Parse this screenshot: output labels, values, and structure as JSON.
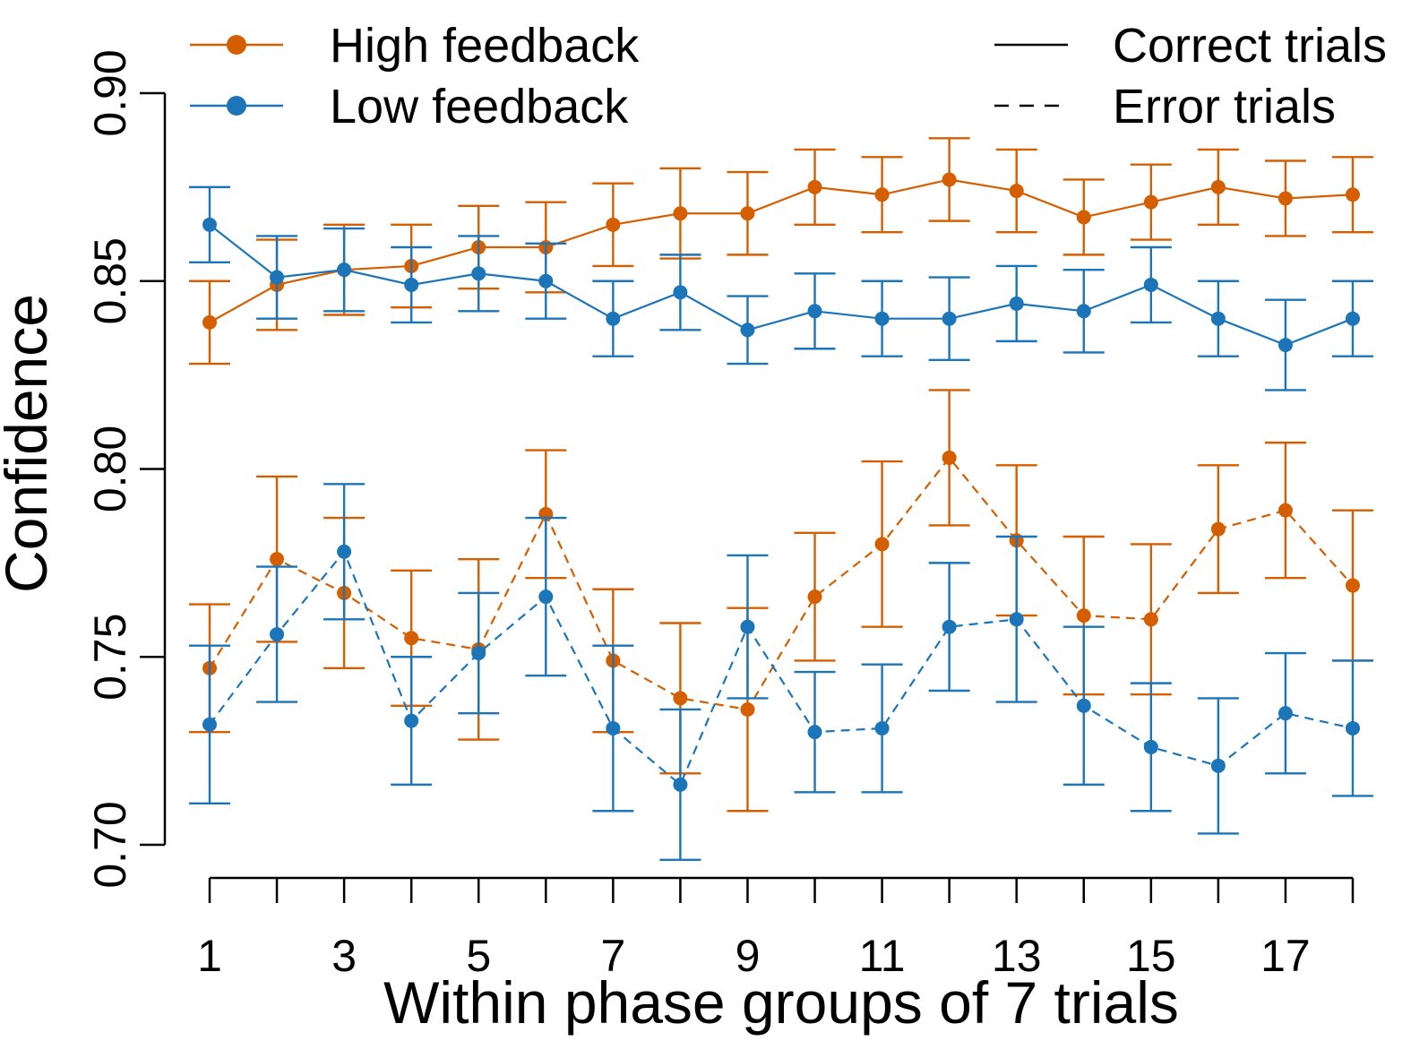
{
  "chart_data": {
    "type": "line",
    "xlabel": "Within phase groups of 7 trials",
    "ylabel": "Confidence",
    "xlim": [
      1,
      18
    ],
    "ylim": [
      0.7,
      0.9
    ],
    "x": [
      1,
      2,
      3,
      4,
      5,
      6,
      7,
      8,
      9,
      10,
      11,
      12,
      13,
      14,
      15,
      16,
      17,
      18
    ],
    "x_tick_values": [
      1,
      2,
      3,
      4,
      5,
      6,
      7,
      8,
      9,
      10,
      11,
      12,
      13,
      14,
      15,
      16,
      17,
      18
    ],
    "x_tick_labels": [
      "1",
      "3",
      "5",
      "7",
      "9",
      "11",
      "13",
      "15",
      "17"
    ],
    "x_tick_label_values": [
      1,
      3,
      5,
      7,
      9,
      11,
      13,
      15,
      17
    ],
    "y_ticks": [
      0.7,
      0.75,
      0.8,
      0.85,
      0.9
    ],
    "y_tick_labels": [
      "0.70",
      "0.75",
      "0.80",
      "0.85",
      "0.90"
    ],
    "grid": false,
    "legend": {
      "placement": "top",
      "groups": [
        {
          "label": "High feedback",
          "kind": "color",
          "color": "#D55E00"
        },
        {
          "label": "Low feedback",
          "kind": "color",
          "color": "#1B75B8"
        },
        {
          "label": "Correct trials",
          "kind": "linestyle",
          "dash": "solid"
        },
        {
          "label": "Error trials",
          "kind": "linestyle",
          "dash": "dashed"
        }
      ]
    },
    "series": [
      {
        "name": "High feedback",
        "condition": "Correct trials",
        "color": "#D55E00",
        "dash": "solid",
        "values": [
          0.839,
          0.849,
          0.853,
          0.854,
          0.859,
          0.859,
          0.865,
          0.868,
          0.868,
          0.875,
          0.873,
          0.877,
          0.874,
          0.867,
          0.871,
          0.875,
          0.872,
          0.873
        ],
        "error": [
          0.011,
          0.012,
          0.012,
          0.011,
          0.011,
          0.012,
          0.011,
          0.012,
          0.011,
          0.01,
          0.01,
          0.011,
          0.011,
          0.01,
          0.01,
          0.01,
          0.01,
          0.01
        ]
      },
      {
        "name": "Low feedback",
        "condition": "Correct trials",
        "color": "#1B75B8",
        "dash": "solid",
        "values": [
          0.865,
          0.851,
          0.853,
          0.849,
          0.852,
          0.85,
          0.84,
          0.847,
          0.837,
          0.842,
          0.84,
          0.84,
          0.844,
          0.842,
          0.849,
          0.84,
          0.833,
          0.84
        ],
        "error": [
          0.01,
          0.011,
          0.011,
          0.01,
          0.01,
          0.01,
          0.01,
          0.01,
          0.009,
          0.01,
          0.01,
          0.011,
          0.01,
          0.011,
          0.01,
          0.01,
          0.012,
          0.01
        ]
      },
      {
        "name": "High feedback",
        "condition": "Error trials",
        "color": "#D55E00",
        "dash": "dashed",
        "values": [
          0.747,
          0.776,
          0.767,
          0.755,
          0.752,
          0.788,
          0.749,
          0.739,
          0.736,
          0.766,
          0.78,
          0.803,
          0.781,
          0.761,
          0.76,
          0.784,
          0.789,
          0.769
        ],
        "error": [
          0.017,
          0.022,
          0.02,
          0.018,
          0.024,
          0.017,
          0.019,
          0.02,
          0.027,
          0.017,
          0.022,
          0.018,
          0.02,
          0.021,
          0.02,
          0.017,
          0.018,
          0.02
        ]
      },
      {
        "name": "Low feedback",
        "condition": "Error trials",
        "color": "#1B75B8",
        "dash": "dashed",
        "values": [
          0.732,
          0.756,
          0.778,
          0.733,
          0.751,
          0.766,
          0.731,
          0.716,
          0.758,
          0.73,
          0.731,
          0.758,
          0.76,
          0.737,
          0.726,
          0.721,
          0.735,
          0.731
        ],
        "error": [
          0.021,
          0.018,
          0.018,
          0.017,
          0.016,
          0.021,
          0.022,
          0.02,
          0.019,
          0.016,
          0.017,
          0.017,
          0.022,
          0.021,
          0.017,
          0.018,
          0.016,
          0.018
        ]
      }
    ]
  }
}
